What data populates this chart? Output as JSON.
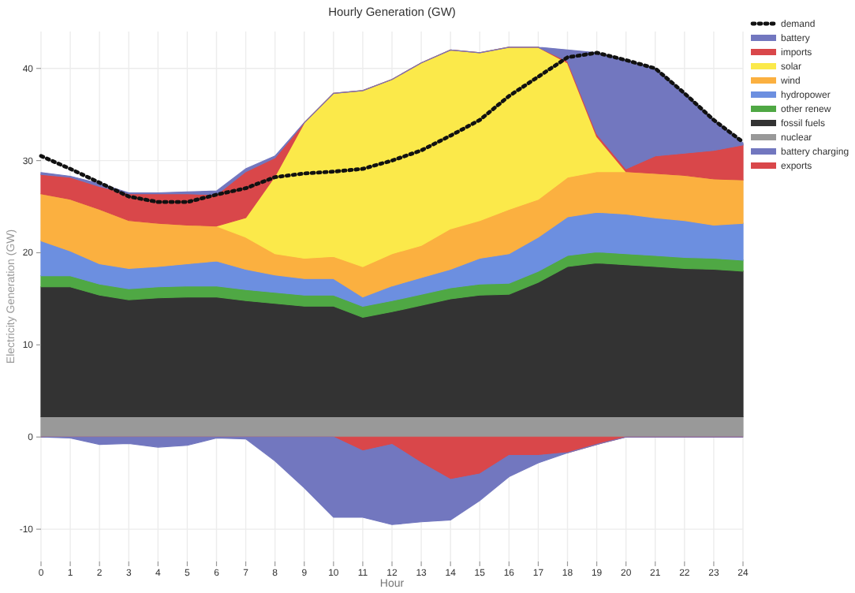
{
  "chart_data": [
    {
      "type": "area",
      "stacked": true,
      "title": "Hourly Generation (GW)",
      "xlabel": "Hour",
      "ylabel": "Electricity Generation (GW)",
      "x": [
        0,
        1,
        2,
        3,
        4,
        5,
        6,
        7,
        8,
        9,
        10,
        11,
        12,
        13,
        14,
        15,
        16,
        17,
        18,
        19,
        20,
        21,
        22,
        23,
        24
      ],
      "xlim": [
        0,
        24
      ],
      "xticks": [
        0,
        1,
        2,
        3,
        4,
        5,
        6,
        7,
        8,
        9,
        10,
        11,
        12,
        13,
        14,
        15,
        16,
        17,
        18,
        19,
        20,
        21,
        22,
        23,
        24
      ],
      "ylim": [
        -13.5,
        44
      ],
      "yticks": [
        -10,
        0,
        10,
        20,
        30,
        40
      ],
      "grid": true,
      "legend": "right",
      "series": [
        {
          "name": "nuclear",
          "color": "#999999",
          "values": [
            2.2,
            2.2,
            2.2,
            2.2,
            2.2,
            2.2,
            2.2,
            2.2,
            2.2,
            2.2,
            2.2,
            2.2,
            2.2,
            2.2,
            2.2,
            2.2,
            2.2,
            2.2,
            2.2,
            2.2,
            2.2,
            2.2,
            2.2,
            2.2,
            2.2
          ]
        },
        {
          "name": "fossil fuels",
          "color": "#333333",
          "values": [
            14.1,
            14.1,
            13.2,
            12.7,
            12.9,
            13.0,
            13.0,
            12.6,
            12.3,
            12.0,
            12.0,
            10.8,
            11.4,
            12.1,
            12.8,
            13.2,
            13.3,
            14.6,
            16.3,
            16.7,
            16.5,
            16.3,
            16.1,
            16.0,
            15.8
          ]
        },
        {
          "name": "other renew",
          "color": "#4fa844",
          "values": [
            1.2,
            1.2,
            1.2,
            1.2,
            1.2,
            1.2,
            1.2,
            1.2,
            1.2,
            1.2,
            1.2,
            1.2,
            1.2,
            1.2,
            1.2,
            1.2,
            1.2,
            1.2,
            1.2,
            1.2,
            1.2,
            1.2,
            1.2,
            1.2,
            1.2
          ]
        },
        {
          "name": "hydropower",
          "color": "#6c8fe0",
          "values": [
            3.8,
            2.7,
            2.2,
            2.2,
            2.2,
            2.4,
            2.7,
            2.2,
            1.9,
            1.8,
            1.8,
            1.0,
            1.6,
            1.8,
            2.0,
            2.8,
            3.2,
            3.7,
            4.2,
            4.3,
            4.3,
            4.1,
            4.0,
            3.6,
            4.0
          ]
        },
        {
          "name": "wind",
          "color": "#fbb040",
          "values": [
            5.1,
            5.6,
            5.9,
            5.2,
            4.7,
            4.2,
            3.8,
            3.5,
            2.3,
            2.2,
            2.4,
            3.3,
            3.5,
            3.5,
            4.4,
            4.1,
            4.8,
            4.1,
            4.3,
            4.4,
            4.6,
            4.8,
            4.9,
            5.0,
            4.7
          ]
        },
        {
          "name": "solar",
          "color": "#fbe94a",
          "values": [
            0,
            0,
            0,
            0,
            0,
            0,
            0,
            2.1,
            8.4,
            14.7,
            17.7,
            19.1,
            18.9,
            19.8,
            19.4,
            18.2,
            17.6,
            16.5,
            12.4,
            3.8,
            0,
            0,
            0,
            0,
            0
          ]
        },
        {
          "name": "imports",
          "color": "#d9474a",
          "values": [
            2.1,
            2.4,
            2.5,
            2.9,
            3.2,
            3.4,
            3.4,
            5.0,
            2.0,
            0,
            0,
            0,
            0,
            0,
            0,
            0,
            0,
            0,
            0.2,
            0.3,
            0.3,
            1.9,
            2.4,
            3.1,
            3.8
          ]
        },
        {
          "name": "battery",
          "color": "#7277bf",
          "values": [
            0.2,
            0.1,
            0.3,
            0.1,
            0.1,
            0.2,
            0.4,
            0.3,
            0.2,
            0,
            0,
            0,
            0,
            0,
            0,
            0,
            0,
            0,
            1.2,
            8.8,
            11.8,
            9.5,
            6.5,
            3.3,
            0.2
          ]
        },
        {
          "name": "demand",
          "type": "line",
          "color": "#111111",
          "line_style": "dotted",
          "values": [
            30.5,
            29.1,
            27.6,
            26.1,
            25.5,
            25.5,
            26.3,
            27.0,
            28.2,
            28.6,
            28.8,
            29.1,
            30.0,
            31.1,
            32.7,
            34.4,
            37.0,
            39.1,
            41.2,
            41.7,
            40.9,
            40.0,
            37.3,
            34.4,
            32.0
          ]
        }
      ]
    },
    {
      "type": "area",
      "stacked": true,
      "legend": "right",
      "x": [
        0,
        1,
        2,
        3,
        4,
        5,
        6,
        7,
        8,
        9,
        10,
        11,
        12,
        13,
        14,
        15,
        16,
        17,
        18,
        19,
        20,
        21,
        22,
        23,
        24
      ],
      "xlim": [
        0,
        24
      ],
      "ylim": [
        -13.5,
        44
      ],
      "series": [
        {
          "name": "exports",
          "color": "#d9474a",
          "values": [
            0,
            0,
            0,
            0,
            0,
            0,
            0,
            0,
            0,
            0,
            0,
            -1.5,
            -0.8,
            -2.8,
            -4.6,
            -4.0,
            -2.0,
            -2.0,
            -1.7,
            -0.8,
            0,
            0,
            0,
            0,
            0
          ]
        },
        {
          "name": "battery charging",
          "color": "#7277bf",
          "values": [
            0,
            -0.1,
            -0.8,
            -0.7,
            -1.1,
            -0.9,
            -0.1,
            -0.2,
            -2.6,
            -5.5,
            -8.7,
            -7.2,
            -8.7,
            -6.4,
            -4.4,
            -2.9,
            -2.3,
            -0.8,
            0,
            0,
            0,
            0,
            0,
            0,
            0
          ]
        }
      ]
    }
  ]
}
